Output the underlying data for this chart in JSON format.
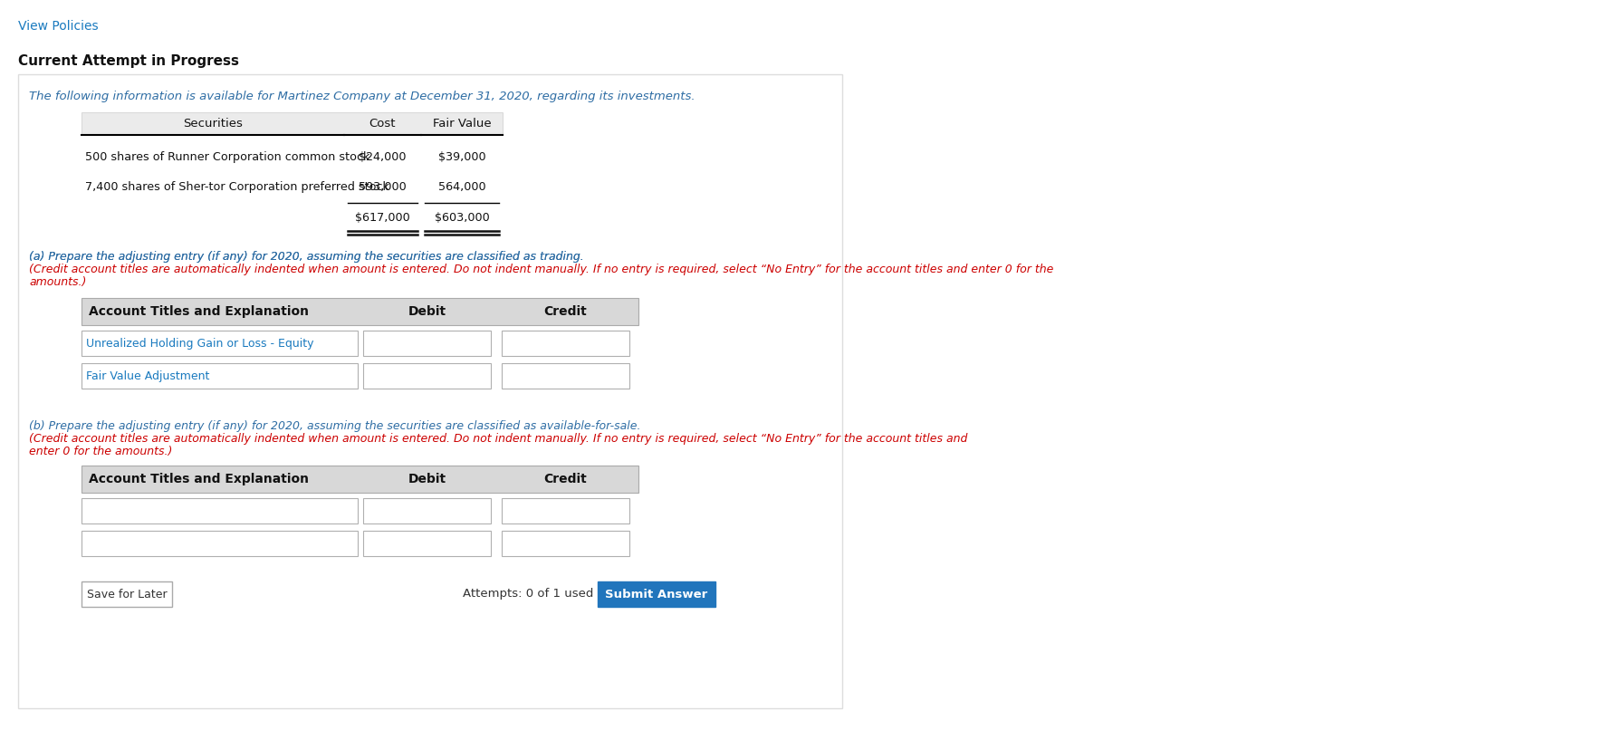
{
  "bg_color": "#ffffff",
  "view_policies_text": "View Policies",
  "view_policies_color": "#1a7abf",
  "current_attempt_text": "Current Attempt in Progress",
  "intro_text": "The following information is available for Martinez Company at December 31, 2020, regarding its investments.",
  "intro_color": "#2e6da4",
  "table_headers": [
    "Securities",
    "Cost",
    "Fair Value"
  ],
  "table_row1_label": "500 shares of Runner Corporation common stock",
  "table_row1_cost": "$24,000",
  "table_row1_fv": "$39,000",
  "table_row2_label": "7,400 shares of Sher-tor Corporation preferred stock",
  "table_row2_cost": "593,000",
  "table_row2_fv": "564,000",
  "table_total_cost": "$617,000",
  "table_total_fv": "$603,000",
  "part_a_blue": "(a) Prepare the adjusting entry (if any) for 2020, assuming the securities are classified as trading. ",
  "part_a_red_line1": "(Credit account titles are automatically indented when amount is entered. Do not indent manually. If no entry is required, select “No Entry” for the account titles and enter 0 for the",
  "part_a_red_line2": "amounts.)",
  "part_a_color": "#2e6da4",
  "part_a_red": "#cc0000",
  "form_header_col1": "Account Titles and Explanation",
  "form_header_col2": "Debit",
  "form_header_col3": "Credit",
  "form_a_row1_label": "Unrealized Holding Gain or Loss - Equity",
  "form_a_row1_label_color": "#1a7abf",
  "form_a_row2_label": "Fair Value Adjustment",
  "form_a_row2_label_color": "#1a7abf",
  "part_b_blue": "(b) Prepare the adjusting entry (if any) for 2020, assuming the securities are classified as available-for-sale. ",
  "part_b_red_line1": "(Credit account titles are automatically indented when amount is entered. Do not indent manually. If no entry is required, select “No Entry” for the account titles and",
  "part_b_red_line2": "enter 0 for the amounts.)",
  "save_later_text": "Save for Later",
  "attempts_text": "Attempts: 0 of 1 used",
  "submit_text": "Submit Answer",
  "submit_bg": "#2175bc",
  "submit_fg": "#ffffff",
  "header_bg": "#d8d8d8",
  "table_bg": "#ebebeb",
  "border_color": "#bbbbbb"
}
